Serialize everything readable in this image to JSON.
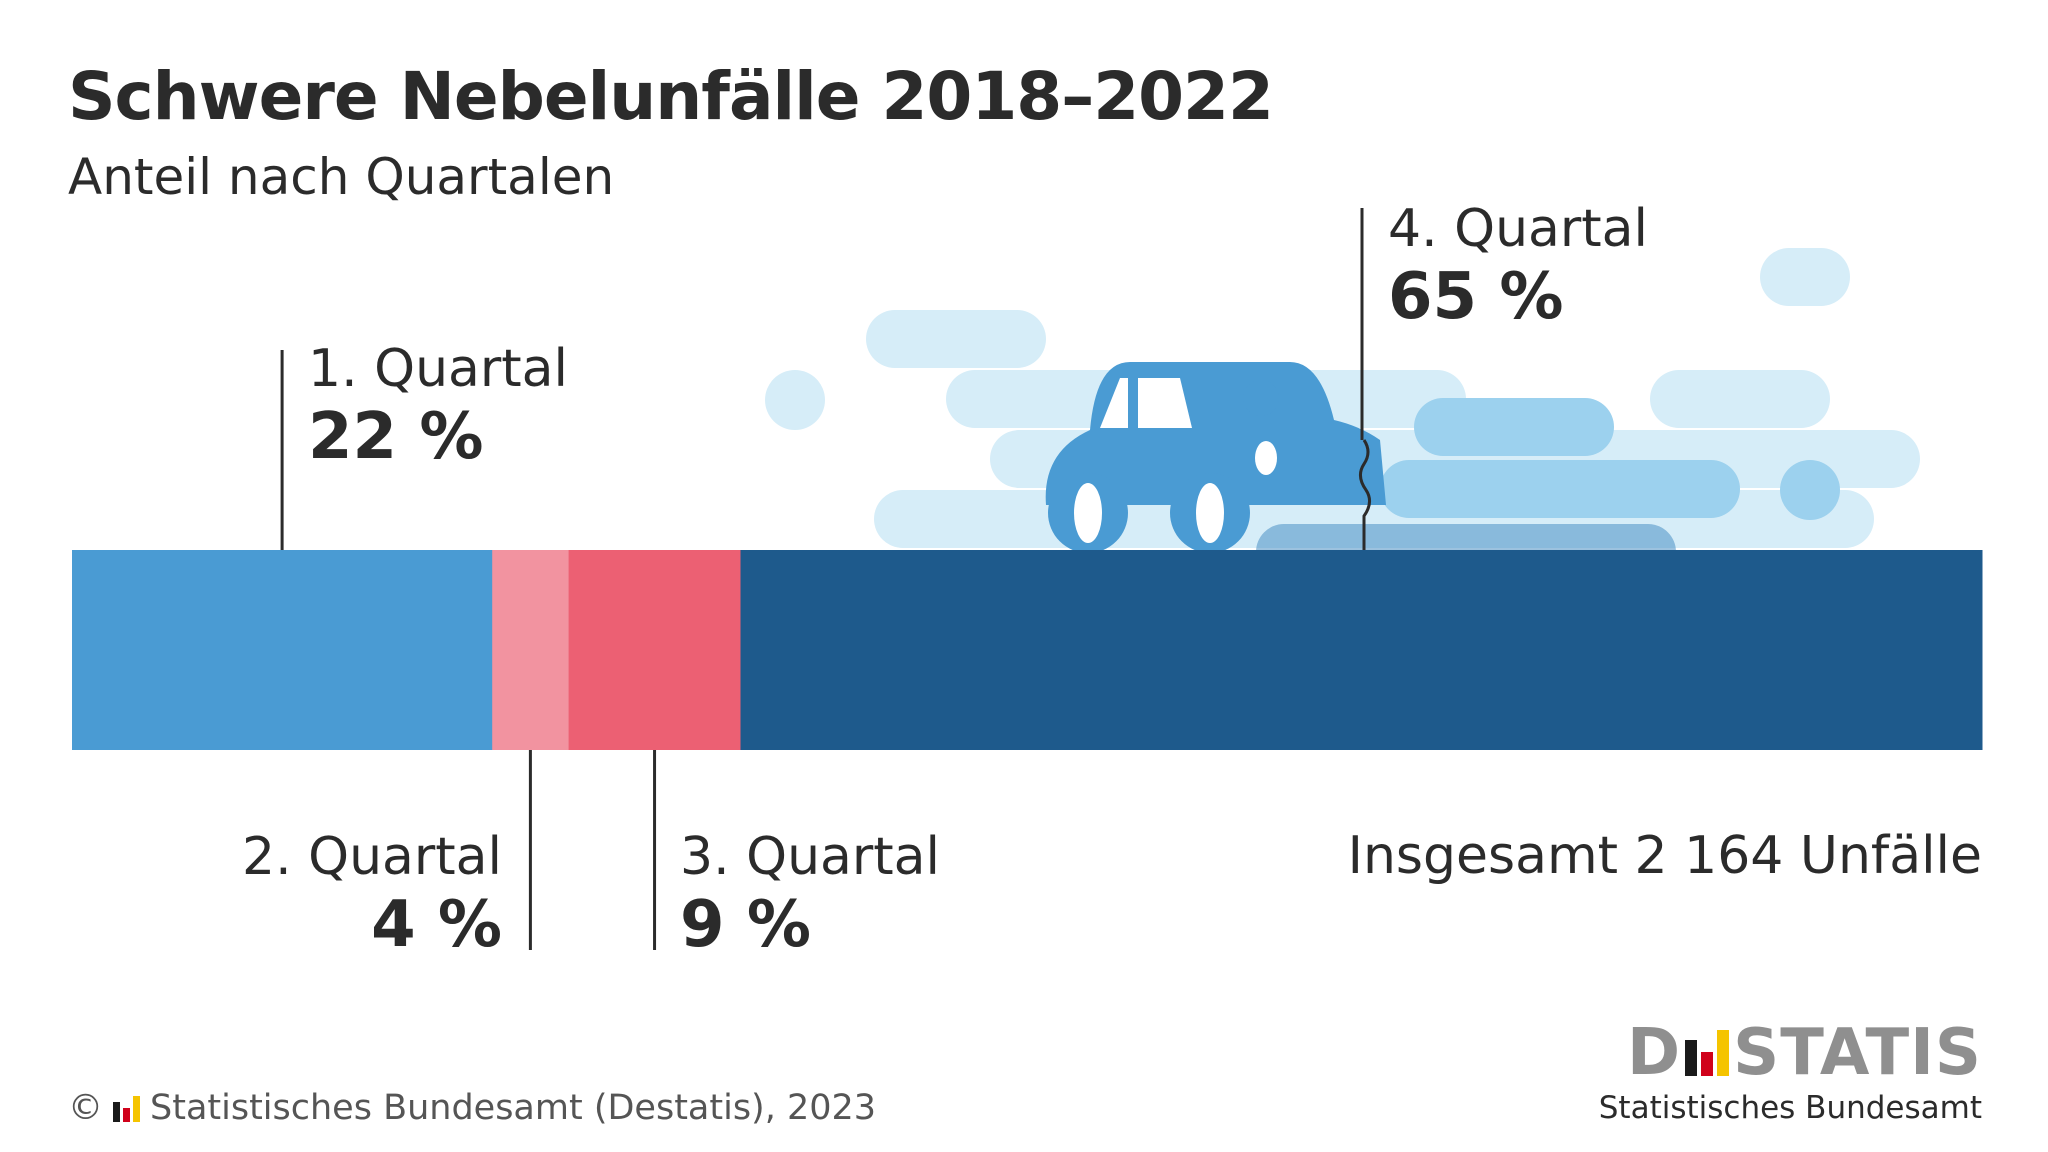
{
  "chart_data": {
    "type": "bar",
    "orientation": "horizontal-stacked-100",
    "title": "Schwere Nebelunfälle 2018–2022",
    "subtitle": "Anteil nach Quartalen",
    "categories": [
      "1. Quartal",
      "2. Quartal",
      "3. Quartal",
      "4. Quartal"
    ],
    "values": [
      22,
      4,
      9,
      65
    ],
    "value_labels": [
      "22 %",
      "4 %",
      "9 %",
      "65 %"
    ],
    "colors": [
      "#4a9bd3",
      "#f293a0",
      "#ec6073",
      "#1e5a8c"
    ],
    "unit": "%",
    "total_note": "Insgesamt 2 164 Unfälle"
  },
  "footer": {
    "copyright_symbol": "©",
    "source": "Statistisches Bundesamt (Destatis), 2023"
  },
  "brand": {
    "word_start": "D",
    "word_end": "STATIS",
    "subtitle": "Statistisches Bundesamt",
    "bar_colors": [
      "#1a1a1a",
      "#d0021b",
      "#f5c400"
    ]
  },
  "illustration": {
    "icon": "car-in-fog-icon"
  }
}
